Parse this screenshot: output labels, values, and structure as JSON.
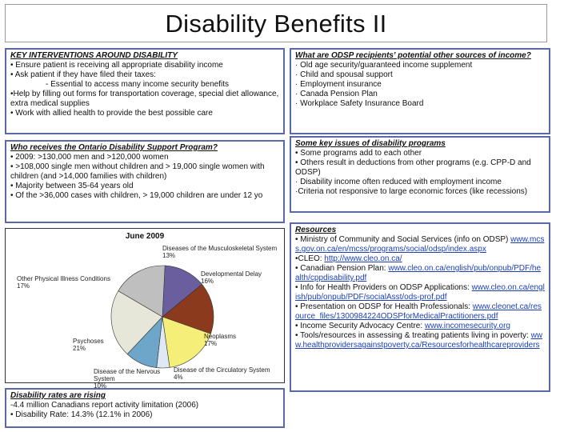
{
  "slide_title": "Disability Benefits II",
  "key_interventions": {
    "heading": "KEY INTERVENTIONS AROUND DISABILITY",
    "lines": [
      "• Ensure patient is receiving all appropriate disability income",
      "• Ask patient if they have filed their taxes:",
      "- Essential to access many income security benefits",
      "•Help by filling out forms for transportation coverage, special diet allowance, extra medical supplies",
      "• Work with allied health to provide the best possible care"
    ]
  },
  "who_receives": {
    "heading": "Who receives the Ontario Disability Support Program?",
    "lines": [
      "• 2009: >130,000 men and >120,000 women",
      "• >108,000 single men without children and > 19,000 single women with children (and >14,000 families with children)",
      "• Majority between 35-64 years old",
      "• Of the >36,000 cases with children, > 19,000 children are under 12 yo"
    ]
  },
  "chart_data": {
    "type": "pie",
    "title": "June 2009",
    "slices": [
      {
        "label": "Diseases of the Musculoskeletal System",
        "value": 13,
        "color": "#6b5e9e"
      },
      {
        "label": "Developmental Delay",
        "value": 16,
        "color": "#8b3a1e"
      },
      {
        "label": "Neoplasms",
        "value": 17,
        "color": "#f5ef7a"
      },
      {
        "label": "Disease of the Circulatory System",
        "value": 4,
        "color": "#dfe9f5"
      },
      {
        "label": "Disease of the Nervous System",
        "value": 10,
        "color": "#6da6c8"
      },
      {
        "label": "Psychoses",
        "value": 21,
        "color": "#e7e7d9"
      },
      {
        "label": "Other Physical Illness Conditions",
        "value": 17,
        "color": "#bfbfbf"
      }
    ],
    "label_texts": {
      "musculo": [
        "Diseases of the Musculoskeletal System",
        "13%"
      ],
      "dev": [
        "Developmental Delay",
        "16%"
      ],
      "neo": [
        "Neoplasms",
        "17%"
      ],
      "circ": [
        "Disease of the Circulatory System",
        "4%"
      ],
      "nerv": [
        "Disease of the Nervous System",
        "10%"
      ],
      "psych": [
        "Psychoses",
        "21%"
      ],
      "other": [
        "Other Physical Illness Conditions",
        "17%"
      ]
    }
  },
  "rates": {
    "heading": "Disability rates are rising",
    "lines": [
      "-4.4 million Canadians report activity limitation (2006)",
      "• Disability Rate: 14.3% (12.1% in 2006)"
    ]
  },
  "other_sources": {
    "heading": "What are ODSP recipients' potential other sources of income?",
    "lines": [
      "· Old age security/guaranteed income supplement",
      "· Child and spousal support",
      "· Employment insurance",
      "· Canada Pension Plan",
      "· Workplace Safety Insurance Board"
    ]
  },
  "issues": {
    "heading": "Some key issues of disability programs",
    "lines": [
      "• Some programs add to each other",
      "• Others result in deductions from other programs (e.g. CPP-D and ODSP)",
      "· Disability income often reduced with employment income",
      "·Criteria not responsive to large economic forces (like recessions)"
    ]
  },
  "resources": {
    "heading": "Resources",
    "items": [
      {
        "text": "• Ministry of Community and Social Services (info on ODSP) ",
        "link": "www.mcss.gov.on.ca/en/mcss/programs/social/odsp/index.aspx"
      },
      {
        "text": "•CLEO: ",
        "link": "http://www.cleo.on.ca/"
      },
      {
        "text": "• Canadian Pension Plan: ",
        "link": "www.cleo.on.ca/english/pub/onpub/PDF/health/cppdisability.pdf"
      },
      {
        "text": "• Info for Health Providers on ODSP Applications: ",
        "link": "www.cleo.on.ca/english/pub/onpub/PDF/socialAsst/ods-prof.pdf"
      },
      {
        "text": "• Presentation on ODSP for Health Professionals: ",
        "link": "www.cleonet.ca/resource_files/1300984224ODSPforMedicalPractitioners.pdf"
      },
      {
        "text": "• Income Security Advocacy Centre: ",
        "link": "www.incomesecurity.org"
      },
      {
        "text": "• Tools/resources in assessing & treating patients living in poverty: ",
        "link": "www.healthprovidersagainstpoverty.ca/Resourcesforhealthcareproviders"
      }
    ]
  }
}
